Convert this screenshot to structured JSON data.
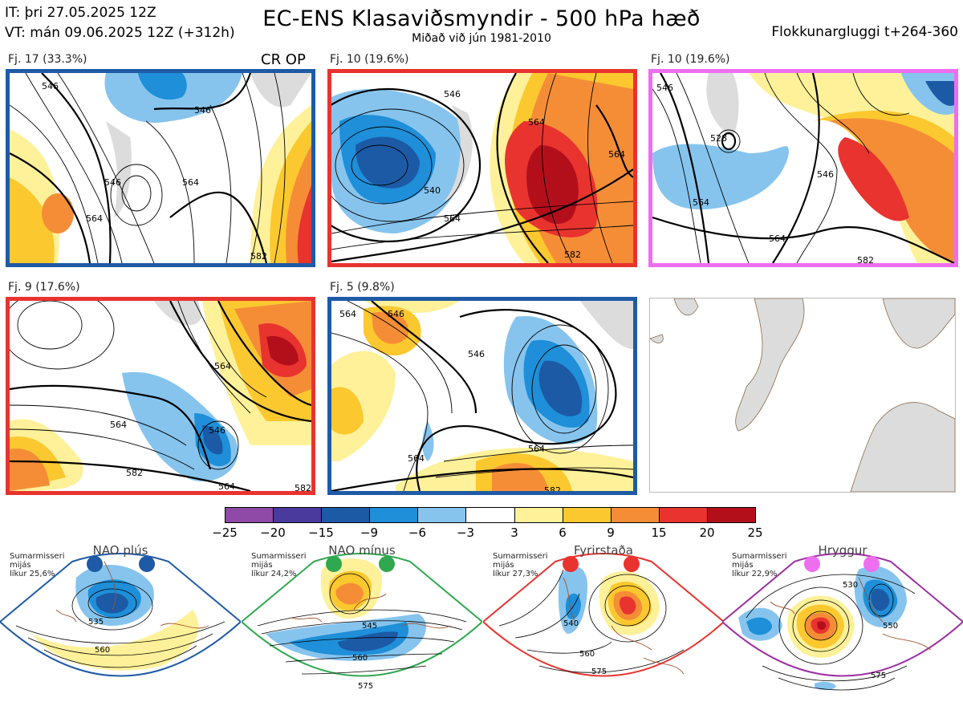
{
  "header": {
    "it_line": "IT: þri 27.05.2025 12Z",
    "vt_line": "VT: mán 09.06.2025 12Z  (+312h)",
    "title": "EC-ENS Klasaviðsmyndir - 500 hPa hæð",
    "subtitle": "Miðað við jún 1981-2010",
    "window": "Flokkunargluggi t+264-360"
  },
  "clusters": [
    {
      "label": "Fj. 17 (33.3%)",
      "border": "#1f5aa6",
      "extra": "CR OP",
      "contours": [
        "546",
        "546",
        "564",
        "564",
        "582",
        "546"
      ]
    },
    {
      "label": "Fj. 10 (19.6%)",
      "border": "#e8332f",
      "contours": [
        "546",
        "540",
        "564",
        "564",
        "582",
        "564"
      ]
    },
    {
      "label": "Fj. 10 (19.6%)",
      "border": "#ee6ef0",
      "contours": [
        "546",
        "528",
        "564",
        "546",
        "564",
        "582"
      ]
    },
    {
      "label": "Fj. 9 (17.6%)",
      "border": "#e8332f",
      "contours": [
        "564",
        "564",
        "546",
        "582",
        "564",
        "582"
      ]
    },
    {
      "label": "Fj. 5 (9.8%)",
      "border": "#1f5aa6",
      "contours": [
        "564",
        "546",
        "546",
        "564",
        "564",
        "582"
      ]
    }
  ],
  "colorbar": {
    "ticks": [
      "−25",
      "−20",
      "−15",
      "−9",
      "−6",
      "−3",
      "3",
      "6",
      "9",
      "15",
      "20",
      "25"
    ],
    "colors": [
      "#8e4aa6",
      "#4b3a9e",
      "#1c5aa6",
      "#1e8fd8",
      "#86c4ee",
      "#ffffff",
      "#fff199",
      "#fcc82f",
      "#f58d37",
      "#e8332f",
      "#b30f1b"
    ]
  },
  "regimes": [
    {
      "name": "NAO plús",
      "season": "Sumarmisseri",
      "period": "mijás",
      "likelihood": "líkur 25,6%",
      "color": "#1f5aa6",
      "contours": [
        "535",
        "560"
      ]
    },
    {
      "name": "NAO mínus",
      "season": "Sumarmisseri",
      "period": "mijás",
      "likelihood": "líkur 24,2%",
      "color": "#2fa84f",
      "contours": [
        "545",
        "560",
        "575"
      ]
    },
    {
      "name": "Fyrirstaða",
      "season": "Sumarmisseri",
      "period": "mijás",
      "likelihood": "líkur 27,3%",
      "color": "#e8332f",
      "contours": [
        "540",
        "560",
        "575"
      ]
    },
    {
      "name": "Hryggur",
      "season": "Sumarmisseri",
      "period": "mijás",
      "likelihood": "líkur 22,9%",
      "color": "#9b2fa0",
      "contours": [
        "530",
        "550",
        "575"
      ]
    }
  ]
}
